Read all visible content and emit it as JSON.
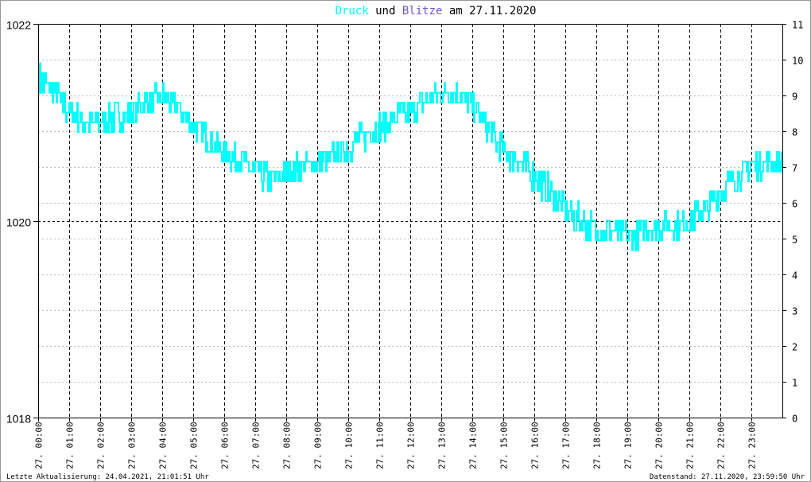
{
  "chart_data": {
    "type": "line",
    "title_parts": [
      {
        "text": "Druck",
        "color": "#00ffff"
      },
      {
        "text": " und ",
        "color": "#000000"
      },
      {
        "text": "Blitze",
        "color": "#6a5acd"
      },
      {
        "text": " am 27.11.2020",
        "color": "#000000"
      }
    ],
    "left_axis": {
      "ylim": [
        1018,
        1022
      ],
      "ticks": [
        "1018",
        "1020",
        "1022"
      ]
    },
    "right_axis": {
      "ylim": [
        0,
        11
      ],
      "ticks": [
        "0",
        "1",
        "2",
        "3",
        "4",
        "5",
        "6",
        "7",
        "8",
        "9",
        "10",
        "11"
      ]
    },
    "x_ticks": [
      "27. 00:00",
      "27. 01:00",
      "27. 02:00",
      "27. 03:00",
      "27. 04:00",
      "27. 05:00",
      "27. 06:00",
      "27. 07:00",
      "27. 08:00",
      "27. 09:00",
      "27. 10:00",
      "27. 11:00",
      "27. 12:00",
      "27. 13:00",
      "27. 14:00",
      "27. 15:00",
      "27. 16:00",
      "27. 17:00",
      "27. 18:00",
      "27. 19:00",
      "27. 20:00",
      "27. 21:00",
      "27. 22:00",
      "27. 23:00"
    ],
    "xlim_hours": [
      0,
      24
    ],
    "series": [
      {
        "name": "Druck",
        "color": "#00ffff",
        "x_hours_step": 0.5,
        "values": [
          1021.45,
          1021.3,
          1021.1,
          1021.0,
          1021.0,
          1021.05,
          1021.1,
          1021.2,
          1021.25,
          1021.15,
          1020.95,
          1020.85,
          1020.7,
          1020.6,
          1020.5,
          1020.4,
          1020.5,
          1020.55,
          1020.6,
          1020.65,
          1020.75,
          1020.85,
          1020.95,
          1021.05,
          1021.1,
          1021.2,
          1021.3,
          1021.3,
          1021.2,
          1020.95,
          1020.7,
          1020.6,
          1020.45,
          1020.3,
          1020.1,
          1020.0,
          1019.9,
          1019.9,
          1019.85,
          1019.9,
          1019.95,
          1019.95,
          1020.0,
          1020.1,
          1020.3,
          1020.45,
          1020.55,
          1020.6,
          1020.6,
          1020.7,
          1020.75,
          1020.85,
          1020.85,
          1020.8,
          1020.75,
          1020.75
        ]
      }
    ],
    "grid": true
  },
  "footer": {
    "left": "Letzte Aktualisierung: 24.04.2021, 21:01:51 Uhr",
    "right": "Datenstand: 27.11.2020, 23:59:50 Uhr"
  }
}
